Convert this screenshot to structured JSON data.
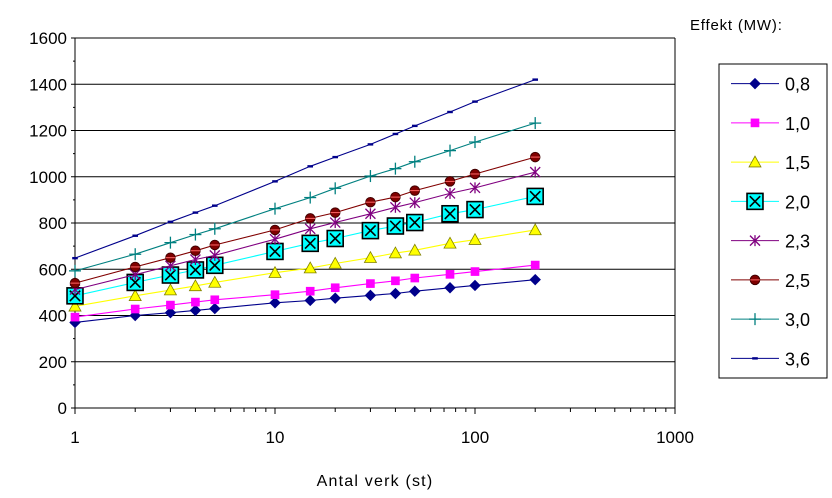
{
  "chart_data": {
    "type": "line",
    "title": "",
    "xlabel": "Antal verk (st)",
    "ylabel": "",
    "x_scale": "log",
    "xlim": [
      1,
      1000
    ],
    "ylim": [
      0,
      1600
    ],
    "x_ticks": [
      1,
      10,
      100,
      1000
    ],
    "x_tick_labels": [
      "1",
      "10",
      "100",
      "1000"
    ],
    "y_ticks": [
      0,
      200,
      400,
      600,
      800,
      1000,
      1200,
      1400,
      1600
    ],
    "y_tick_labels": [
      "0",
      "200",
      "400",
      "600",
      "800",
      "1000",
      "1200",
      "1400",
      "1600"
    ],
    "grid": "horizontal-major",
    "legend_title": "Effekt (MW):",
    "legend_position": "right",
    "series": [
      {
        "name": "0,8",
        "color": "#00008B",
        "marker": "diamond",
        "x": [
          1,
          2,
          3,
          4,
          5,
          10,
          15,
          20,
          30,
          40,
          50,
          75,
          100,
          200
        ],
        "y": [
          370,
          400,
          412,
          422,
          430,
          455,
          465,
          475,
          487,
          495,
          505,
          520,
          530,
          555
        ]
      },
      {
        "name": "1,0",
        "color": "#FF00FF",
        "marker": "square",
        "x": [
          1,
          2,
          3,
          4,
          5,
          10,
          15,
          20,
          30,
          40,
          50,
          75,
          100,
          200
        ],
        "y": [
          393,
          428,
          445,
          458,
          468,
          490,
          505,
          520,
          538,
          550,
          562,
          578,
          590,
          618
        ]
      },
      {
        "name": "1,5",
        "color": "#FFFF00",
        "marker": "triangle",
        "x": [
          1,
          2,
          3,
          4,
          5,
          10,
          15,
          20,
          30,
          40,
          50,
          75,
          100,
          200
        ],
        "y": [
          440,
          485,
          510,
          528,
          543,
          585,
          605,
          625,
          650,
          670,
          682,
          712,
          728,
          770
        ]
      },
      {
        "name": "2,0",
        "color": "#00FFFF",
        "marker": "boxed-x",
        "x": [
          1,
          2,
          5,
          3,
          4,
          10,
          15,
          20,
          30,
          40,
          50,
          75,
          100,
          200
        ],
        "y": [
          485,
          543,
          617,
          575,
          597,
          677,
          712,
          733,
          767,
          787,
          802,
          840,
          858,
          915
        ]
      },
      {
        "name": "2,3",
        "color": "#800080",
        "marker": "star",
        "x": [
          1,
          2,
          3,
          4,
          5,
          10,
          15,
          20,
          30,
          40,
          50,
          75,
          100,
          200
        ],
        "y": [
          512,
          577,
          615,
          642,
          660,
          730,
          775,
          802,
          840,
          868,
          888,
          928,
          952,
          1020
        ]
      },
      {
        "name": "2,5",
        "color": "#800000",
        "marker": "circle",
        "x": [
          1,
          2,
          3,
          4,
          5,
          10,
          15,
          20,
          30,
          40,
          50,
          75,
          100,
          200
        ],
        "y": [
          540,
          610,
          650,
          680,
          705,
          770,
          820,
          845,
          890,
          912,
          940,
          980,
          1012,
          1085
        ]
      },
      {
        "name": "3,0",
        "color": "#008080",
        "marker": "plus",
        "x": [
          1,
          2,
          3,
          4,
          5,
          10,
          15,
          20,
          30,
          40,
          50,
          75,
          100,
          200
        ],
        "y": [
          593,
          665,
          715,
          750,
          775,
          862,
          910,
          950,
          1003,
          1035,
          1065,
          1113,
          1150,
          1232
        ]
      },
      {
        "name": "3,6",
        "color": "#00008B",
        "marker": "dash",
        "x": [
          1,
          2,
          3,
          4,
          5,
          10,
          15,
          20,
          30,
          40,
          50,
          75,
          100,
          200
        ],
        "y": [
          648,
          745,
          805,
          845,
          875,
          980,
          1045,
          1085,
          1140,
          1185,
          1220,
          1280,
          1325,
          1420
        ]
      }
    ]
  }
}
